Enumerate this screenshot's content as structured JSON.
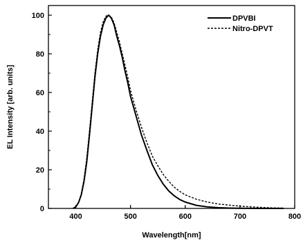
{
  "chart_data": {
    "type": "line",
    "title": "",
    "xlabel": "Wavelength[nm]",
    "ylabel": "EL Intensity  [arb. units]",
    "xlim": [
      350,
      800
    ],
    "ylim": [
      0,
      105
    ],
    "xticks": [
      400,
      500,
      600,
      700,
      800
    ],
    "yticks": [
      0,
      20,
      40,
      60,
      80,
      100
    ],
    "grid": false,
    "legend": "top-right",
    "series": [
      {
        "name": "DPVBI",
        "style": "solid",
        "color": "#000000",
        "x": [
          395,
          400,
          405,
          410,
          415,
          420,
          425,
          430,
          435,
          440,
          445,
          450,
          455,
          460,
          465,
          470,
          475,
          480,
          485,
          490,
          495,
          500,
          510,
          520,
          530,
          540,
          550,
          560,
          570,
          580,
          590,
          600,
          620,
          640,
          660,
          680,
          700,
          720,
          740,
          760,
          780
        ],
        "y": [
          0,
          0.8,
          3,
          7,
          14,
          24,
          38,
          53,
          68,
          80,
          89,
          95,
          98.5,
          100,
          98.5,
          95,
          89,
          84,
          78,
          71,
          65,
          58,
          48,
          38,
          30,
          22.5,
          17,
          12.5,
          9,
          6.5,
          4.6,
          3.3,
          1.6,
          0.8,
          0.4,
          0.2,
          0.1,
          0.05,
          0,
          0,
          0
        ]
      },
      {
        "name": "Nitro-DPVT",
        "style": "dashed",
        "color": "#000000",
        "x": [
          395,
          400,
          405,
          410,
          415,
          420,
          425,
          430,
          435,
          440,
          445,
          450,
          455,
          460,
          465,
          470,
          475,
          480,
          485,
          490,
          495,
          500,
          510,
          520,
          530,
          540,
          550,
          560,
          570,
          580,
          590,
          600,
          620,
          640,
          660,
          680,
          700,
          720,
          740,
          760,
          780
        ],
        "y": [
          0,
          0.8,
          3,
          7.5,
          15,
          26,
          40,
          55,
          70,
          82,
          91,
          96.5,
          99.5,
          100,
          99,
          96,
          91,
          86,
          80,
          74,
          68,
          61,
          51,
          42,
          34,
          27,
          22,
          17.5,
          14,
          11,
          8.8,
          7,
          4.8,
          3.3,
          2.3,
          1.7,
          1.2,
          0.8,
          0.5,
          0.3,
          0.2
        ]
      }
    ]
  }
}
